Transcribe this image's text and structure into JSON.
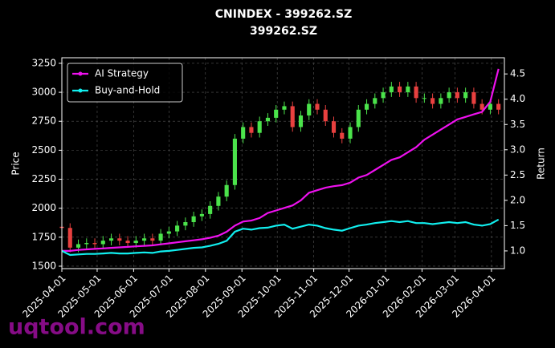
{
  "chart_data": {
    "type": "candlestick",
    "title": "CNINDEX - 399262.SZ",
    "subtitle": "399262.SZ",
    "y_label": "Price",
    "y2_label": "Return",
    "watermark": "uqtool.com",
    "grid": true,
    "legend": "upper left",
    "up_color": "#4be34b",
    "down_color": "#e8403f",
    "x": [
      "2025-04-01",
      "2025-04-08",
      "2025-04-15",
      "2025-04-22",
      "2025-04-29",
      "2025-05-06",
      "2025-05-13",
      "2025-05-20",
      "2025-05-27",
      "2025-06-03",
      "2025-06-10",
      "2025-06-17",
      "2025-06-24",
      "2025-07-01",
      "2025-07-08",
      "2025-07-15",
      "2025-07-22",
      "2025-07-29",
      "2025-08-05",
      "2025-08-12",
      "2025-08-19",
      "2025-08-26",
      "2025-09-02",
      "2025-09-09",
      "2025-09-16",
      "2025-09-23",
      "2025-09-30",
      "2025-10-07",
      "2025-10-14",
      "2025-10-21",
      "2025-10-28",
      "2025-11-04",
      "2025-11-11",
      "2025-11-18",
      "2025-11-25",
      "2025-12-02",
      "2025-12-09",
      "2025-12-16",
      "2025-12-23",
      "2025-12-30",
      "2026-01-06",
      "2026-01-13",
      "2026-01-20",
      "2026-01-27",
      "2026-02-03",
      "2026-02-10",
      "2026-02-17",
      "2026-02-24",
      "2026-03-03",
      "2026-03-10",
      "2026-03-17",
      "2026-03-24",
      "2026-03-31",
      "2026-04-07"
    ],
    "open": [
      1840,
      1830,
      1660,
      1690,
      1700,
      1690,
      1720,
      1740,
      1720,
      1700,
      1720,
      1740,
      1720,
      1780,
      1800,
      1850,
      1880,
      1930,
      1950,
      2020,
      2100,
      2200,
      2600,
      2700,
      2650,
      2750,
      2780,
      2850,
      2880,
      2700,
      2800,
      2900,
      2850,
      2750,
      2650,
      2600,
      2700,
      2850,
      2900,
      2950,
      3000,
      3050,
      3000,
      3050,
      2950,
      2950,
      2900,
      2950,
      3000,
      2950,
      3000,
      2900,
      2850,
      2900
    ],
    "high": [
      1880,
      1870,
      1730,
      1740,
      1740,
      1760,
      1780,
      1780,
      1760,
      1760,
      1780,
      1780,
      1820,
      1840,
      1890,
      1920,
      1970,
      1990,
      2060,
      2140,
      2240,
      2640,
      2740,
      2740,
      2790,
      2820,
      2890,
      2920,
      2920,
      2840,
      2940,
      2940,
      2890,
      2790,
      2690,
      2740,
      2890,
      2940,
      2990,
      3040,
      3090,
      3090,
      3090,
      3090,
      2990,
      2990,
      2990,
      3040,
      3040,
      3040,
      3040,
      2940,
      2940,
      2940
    ],
    "low": [
      1790,
      1620,
      1620,
      1650,
      1650,
      1650,
      1680,
      1680,
      1660,
      1660,
      1680,
      1680,
      1680,
      1740,
      1760,
      1810,
      1840,
      1890,
      1910,
      1980,
      2060,
      2160,
      2560,
      2610,
      2610,
      2710,
      2740,
      2810,
      2660,
      2660,
      2760,
      2810,
      2710,
      2610,
      2560,
      2560,
      2660,
      2810,
      2860,
      2910,
      2960,
      2960,
      2960,
      2910,
      2910,
      2860,
      2860,
      2910,
      2910,
      2910,
      2860,
      2810,
      2810,
      2810
    ],
    "close": [
      1830,
      1660,
      1690,
      1700,
      1690,
      1720,
      1740,
      1720,
      1700,
      1720,
      1740,
      1720,
      1780,
      1800,
      1850,
      1880,
      1930,
      1950,
      2020,
      2100,
      2200,
      2600,
      2700,
      2650,
      2750,
      2780,
      2850,
      2880,
      2700,
      2800,
      2900,
      2850,
      2750,
      2650,
      2600,
      2700,
      2850,
      2900,
      2950,
      3000,
      3050,
      3000,
      3050,
      2950,
      2950,
      2900,
      2950,
      3000,
      2950,
      3000,
      2900,
      2850,
      2900,
      2850
    ],
    "series": [
      {
        "name": "AI Strategy",
        "color": "#ee11ee",
        "axis": "y2",
        "values": [
          1,
          1,
          1.02,
          1.03,
          1.04,
          1.05,
          1.06,
          1.07,
          1.08,
          1.09,
          1.1,
          1.11,
          1.13,
          1.15,
          1.17,
          1.19,
          1.21,
          1.23,
          1.26,
          1.3,
          1.38,
          1.5,
          1.58,
          1.6,
          1.65,
          1.75,
          1.8,
          1.85,
          1.9,
          2,
          2.15,
          2.2,
          2.25,
          2.28,
          2.3,
          2.35,
          2.45,
          2.5,
          2.6,
          2.7,
          2.8,
          2.85,
          2.95,
          3.05,
          3.2,
          3.3,
          3.4,
          3.5,
          3.6,
          3.65,
          3.7,
          3.75,
          3.95,
          4.6
        ]
      },
      {
        "name": "Buy-and-Hold",
        "color": "#11eeee",
        "axis": "y2",
        "values": [
          1,
          0.92,
          0.93,
          0.94,
          0.94,
          0.95,
          0.96,
          0.95,
          0.95,
          0.96,
          0.97,
          0.96,
          0.99,
          1,
          1.02,
          1.04,
          1.06,
          1.07,
          1.1,
          1.14,
          1.2,
          1.38,
          1.44,
          1.42,
          1.45,
          1.46,
          1.5,
          1.52,
          1.44,
          1.48,
          1.52,
          1.5,
          1.45,
          1.42,
          1.4,
          1.45,
          1.5,
          1.52,
          1.55,
          1.57,
          1.59,
          1.57,
          1.59,
          1.55,
          1.55,
          1.53,
          1.55,
          1.57,
          1.55,
          1.57,
          1.52,
          1.5,
          1.53,
          1.62
        ]
      }
    ],
    "xlim": [
      "2025-04-01",
      "2026-04-12"
    ],
    "xticks": [
      "2025-04-01",
      "2025-05-01",
      "2025-06-01",
      "2025-07-01",
      "2025-08-01",
      "2025-09-01",
      "2025-10-01",
      "2025-11-01",
      "2025-12-01",
      "2026-01-01",
      "2026-02-01",
      "2026-03-01",
      "2026-04-01"
    ],
    "ylim": [
      1479,
      3298
    ],
    "yticks": [
      1500,
      1750,
      2000,
      2250,
      2500,
      2750,
      3000,
      3250
    ],
    "y2lim": [
      0.65,
      4.82
    ],
    "y2ticks": [
      {
        "value": 1,
        "label": "1.0"
      },
      1.5,
      {
        "value": 2,
        "label": "2.0"
      },
      2.5,
      {
        "value": 3,
        "label": "3.0"
      },
      3.5,
      {
        "value": 4,
        "label": "4.0"
      },
      4.5
    ]
  }
}
